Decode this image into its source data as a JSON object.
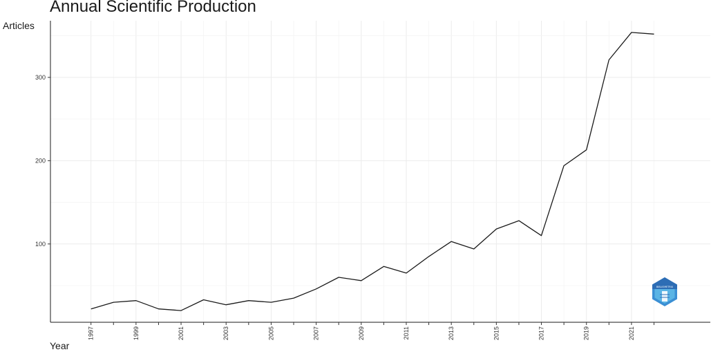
{
  "chart_data": {
    "type": "line",
    "title": "Annual Scientific Production",
    "xlabel": "Year",
    "ylabel": "Articles",
    "x": [
      1997,
      1998,
      1999,
      2000,
      2001,
      2002,
      2003,
      2004,
      2005,
      2006,
      2007,
      2008,
      2009,
      2010,
      2011,
      2012,
      2013,
      2014,
      2015,
      2016,
      2017,
      2018,
      2019,
      2020,
      2021,
      2022
    ],
    "series": [
      {
        "values": [
          22,
          30,
          32,
          22,
          20,
          33,
          27,
          32,
          30,
          35,
          46,
          60,
          56,
          73,
          65,
          85,
          103,
          94,
          118,
          128,
          110,
          194,
          213,
          321,
          354,
          352
        ]
      }
    ],
    "xticks": [
      "1997",
      "1999",
      "2001",
      "2003",
      "2005",
      "2007",
      "2009",
      "2011",
      "2013",
      "2015",
      "2017",
      "2019",
      "2021"
    ],
    "yticks": [
      "100",
      "200",
      "300"
    ],
    "xlim": [
      1995.2,
      2024.5
    ],
    "ylim": [
      6,
      368
    ],
    "grid": true,
    "legend": "none",
    "line_color": "#1a1a1a",
    "logo": {
      "name": "bibliometrix-logo",
      "text": "BIBLIOMETRIX",
      "colors": [
        "#2d6db5",
        "#5ab4e5"
      ]
    }
  }
}
